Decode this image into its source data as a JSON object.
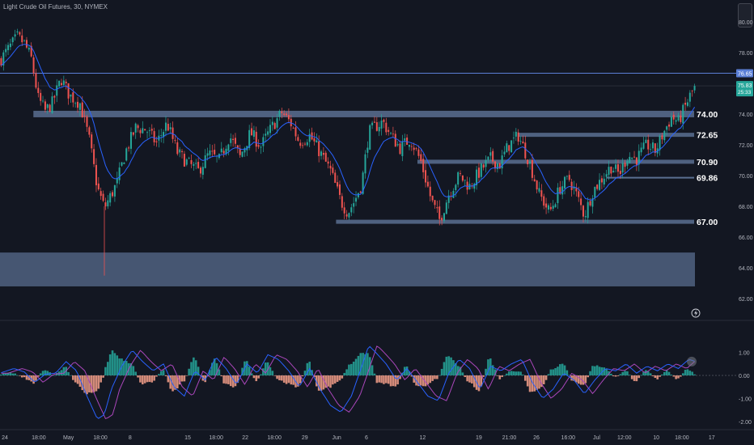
{
  "header": {
    "symbol_title": "Light Crude Oil Futures, 30, NYMEX"
  },
  "colors": {
    "background": "#131722",
    "candle_up": "#26a69a",
    "candle_down": "#ef5350",
    "ema": "#2962ff",
    "zone": "#5a6f91",
    "price_line": "#5b7fd6",
    "hist_up": "#26a69a",
    "hist_down": "#f7a08a",
    "osc_line1": "#2962ff",
    "osc_line2": "#ab47bc",
    "axis_text": "#b2b5be",
    "level_text": "#ffffff"
  },
  "icons": {
    "alert_icon": "lightning-icon",
    "oscillator_marker": "circle-marker-icon"
  },
  "chart_data": [
    {
      "type": "candlestick",
      "title": "",
      "ylim": [
        60.8,
        81.2
      ],
      "y_ticks": [
        "80.00",
        "78.00",
        "76.00",
        "74.00",
        "72.00",
        "70.00",
        "68.00",
        "66.00",
        "64.00",
        "62.00"
      ],
      "y_tick_values": [
        80,
        78,
        76,
        74,
        72,
        70,
        68,
        66,
        64,
        62
      ],
      "x_ticks": [
        "24",
        "18:00",
        "May",
        "18:00",
        "8",
        "15",
        "18:00",
        "22",
        "18:00",
        "29",
        "Jun",
        "6",
        "12",
        "19",
        "21:00",
        "26",
        "16:00",
        "Jul",
        "12:00",
        "10",
        "18:00",
        "17"
      ],
      "x_tick_index": [
        0.0,
        0.05,
        0.094,
        0.141,
        0.185,
        0.27,
        0.312,
        0.355,
        0.398,
        0.443,
        0.49,
        0.534,
        0.617,
        0.7,
        0.745,
        0.785,
        0.832,
        0.874,
        0.915,
        0.962,
        1.0,
        1.044
      ],
      "price_path": [
        [
          0.0,
          77.5
        ],
        [
          0.01,
          78.1
        ],
        [
          0.025,
          79.0
        ],
        [
          0.035,
          78.6
        ],
        [
          0.045,
          77.6
        ],
        [
          0.055,
          75.0
        ],
        [
          0.065,
          74.2
        ],
        [
          0.075,
          74.7
        ],
        [
          0.088,
          76.3
        ],
        [
          0.1,
          75.2
        ],
        [
          0.115,
          74.7
        ],
        [
          0.128,
          72.4
        ],
        [
          0.14,
          69.2
        ],
        [
          0.15,
          67.9
        ],
        [
          0.158,
          68.6
        ],
        [
          0.168,
          69.5
        ],
        [
          0.18,
          71.5
        ],
        [
          0.195,
          73.1
        ],
        [
          0.21,
          73.0
        ],
        [
          0.225,
          72.1
        ],
        [
          0.24,
          73.4
        ],
        [
          0.255,
          71.5
        ],
        [
          0.27,
          70.8
        ],
        [
          0.285,
          70.3
        ],
        [
          0.3,
          71.4
        ],
        [
          0.315,
          71.0
        ],
        [
          0.33,
          72.6
        ],
        [
          0.345,
          71.2
        ],
        [
          0.36,
          72.8
        ],
        [
          0.375,
          71.9
        ],
        [
          0.39,
          73.1
        ],
        [
          0.405,
          74.1
        ],
        [
          0.418,
          73.4
        ],
        [
          0.43,
          72.2
        ],
        [
          0.445,
          72.6
        ],
        [
          0.46,
          71.5
        ],
        [
          0.475,
          70.3
        ],
        [
          0.49,
          68.3
        ],
        [
          0.5,
          67.6
        ],
        [
          0.51,
          68.4
        ],
        [
          0.52,
          69.5
        ],
        [
          0.53,
          72.8
        ],
        [
          0.54,
          73.2
        ],
        [
          0.55,
          73.5
        ],
        [
          0.562,
          72.6
        ],
        [
          0.575,
          71.8
        ],
        [
          0.59,
          72.4
        ],
        [
          0.605,
          70.9
        ],
        [
          0.62,
          68.4
        ],
        [
          0.632,
          67.1
        ],
        [
          0.645,
          68.8
        ],
        [
          0.66,
          70.0
        ],
        [
          0.675,
          69.3
        ],
        [
          0.69,
          70.3
        ],
        [
          0.705,
          71.1
        ],
        [
          0.718,
          70.7
        ],
        [
          0.73,
          71.9
        ],
        [
          0.745,
          72.6
        ],
        [
          0.76,
          71.0
        ],
        [
          0.775,
          68.8
        ],
        [
          0.79,
          67.6
        ],
        [
          0.805,
          69.2
        ],
        [
          0.818,
          69.8
        ],
        [
          0.83,
          68.6
        ],
        [
          0.84,
          67.4
        ],
        [
          0.852,
          69.0
        ],
        [
          0.865,
          69.8
        ],
        [
          0.878,
          70.6
        ],
        [
          0.89,
          70.1
        ],
        [
          0.902,
          71.3
        ],
        [
          0.915,
          71.1
        ],
        [
          0.93,
          72.0
        ],
        [
          0.942,
          71.6
        ],
        [
          0.955,
          72.9
        ],
        [
          0.965,
          73.8
        ],
        [
          0.975,
          73.5
        ],
        [
          0.985,
          74.5
        ],
        [
          0.993,
          75.3
        ],
        [
          1.0,
          75.8
        ]
      ],
      "horizontal_levels": [
        {
          "label": "74.00",
          "value": 74.0,
          "from": 0.048,
          "to": 1.0,
          "style": "zone"
        },
        {
          "label": "72.65",
          "value": 72.65,
          "from": 0.744,
          "to": 1.0,
          "style": "zone-thin"
        },
        {
          "label": "70.90",
          "value": 70.9,
          "from": 0.6,
          "to": 1.0,
          "style": "zone-thin"
        },
        {
          "label": "69.86",
          "value": 69.86,
          "from": 0.872,
          "to": 1.0,
          "style": "line"
        },
        {
          "label": "67.00",
          "value": 67.0,
          "from": 0.483,
          "to": 1.0,
          "style": "zone-thin"
        }
      ],
      "demand_zone": {
        "low": 62.8,
        "high": 65.0
      },
      "price_line": {
        "label": "76.65",
        "value": 76.65
      },
      "current_price": {
        "label": "75.83",
        "countdown": "25:33",
        "value": 75.83
      }
    },
    {
      "type": "histogram",
      "title": "",
      "ylim": [
        -2.25,
        2.25
      ],
      "y_ticks": [
        "1.00",
        "0.00",
        "-1.00",
        "-2.00"
      ],
      "y_tick_values": [
        1,
        0,
        -1,
        -2
      ],
      "osc_path": [
        [
          0.0,
          0.1
        ],
        [
          0.02,
          0.3
        ],
        [
          0.035,
          0.15
        ],
        [
          0.05,
          -0.3
        ],
        [
          0.065,
          0.05
        ],
        [
          0.08,
          0.1
        ],
        [
          0.095,
          0.6
        ],
        [
          0.11,
          0.2
        ],
        [
          0.125,
          -0.9
        ],
        [
          0.14,
          -1.9
        ],
        [
          0.15,
          -1.7
        ],
        [
          0.16,
          -0.6
        ],
        [
          0.175,
          0.4
        ],
        [
          0.19,
          1.1
        ],
        [
          0.205,
          0.6
        ],
        [
          0.22,
          0.2
        ],
        [
          0.235,
          0.5
        ],
        [
          0.25,
          -0.5
        ],
        [
          0.265,
          -0.9
        ],
        [
          0.28,
          0.2
        ],
        [
          0.295,
          -0.2
        ],
        [
          0.31,
          0.8
        ],
        [
          0.325,
          0.3
        ],
        [
          0.34,
          -0.4
        ],
        [
          0.355,
          0.5
        ],
        [
          0.37,
          0.1
        ],
        [
          0.385,
          0.9
        ],
        [
          0.4,
          0.7
        ],
        [
          0.415,
          0.2
        ],
        [
          0.43,
          -0.5
        ],
        [
          0.445,
          0.3
        ],
        [
          0.46,
          -0.6
        ],
        [
          0.475,
          -1.3
        ],
        [
          0.49,
          -1.6
        ],
        [
          0.505,
          -0.9
        ],
        [
          0.52,
          0.4
        ],
        [
          0.53,
          1.3
        ],
        [
          0.54,
          1.0
        ],
        [
          0.555,
          0.5
        ],
        [
          0.57,
          -0.2
        ],
        [
          0.585,
          0.3
        ],
        [
          0.6,
          -0.3
        ],
        [
          0.615,
          -0.9
        ],
        [
          0.63,
          -1.1
        ],
        [
          0.645,
          0.1
        ],
        [
          0.66,
          0.7
        ],
        [
          0.675,
          0.3
        ],
        [
          0.69,
          -0.6
        ],
        [
          0.705,
          0.4
        ],
        [
          0.72,
          0.2
        ],
        [
          0.735,
          0.5
        ],
        [
          0.75,
          0.7
        ],
        [
          0.765,
          -0.3
        ],
        [
          0.78,
          -1.0
        ],
        [
          0.795,
          -0.6
        ],
        [
          0.81,
          0.1
        ],
        [
          0.825,
          -0.2
        ],
        [
          0.84,
          -0.8
        ],
        [
          0.855,
          -0.2
        ],
        [
          0.87,
          0.3
        ],
        [
          0.885,
          0.2
        ],
        [
          0.9,
          0.5
        ],
        [
          0.915,
          0.1
        ],
        [
          0.93,
          0.4
        ],
        [
          0.945,
          0.2
        ],
        [
          0.96,
          0.5
        ],
        [
          0.975,
          0.3
        ],
        [
          0.99,
          0.7
        ],
        [
          1.0,
          0.6
        ]
      ]
    }
  ]
}
